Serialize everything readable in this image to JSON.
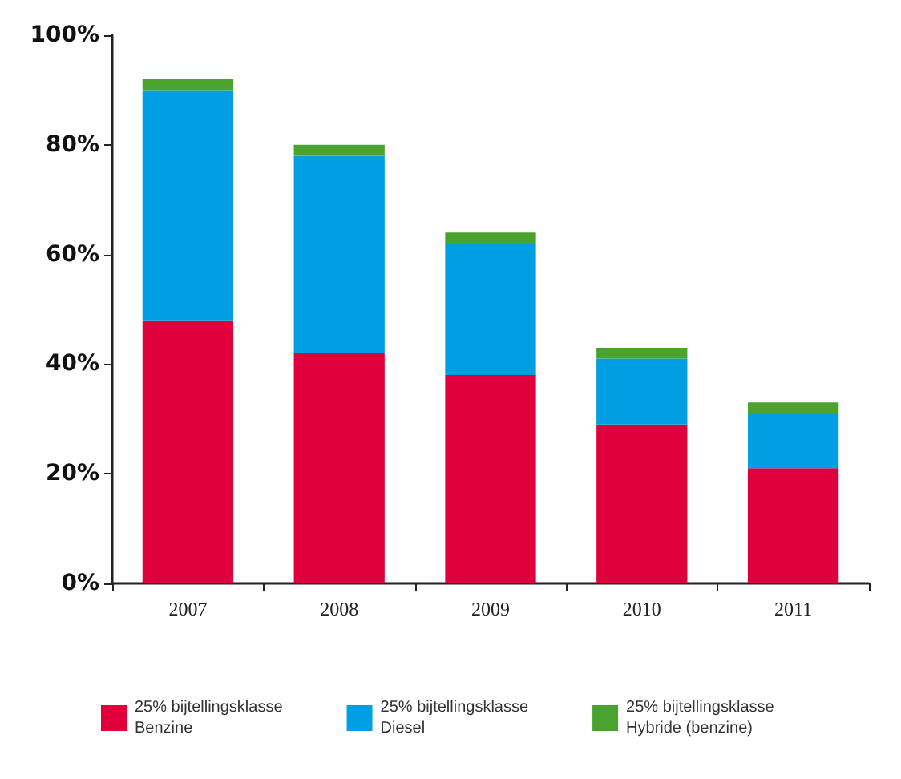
{
  "chart_data": {
    "type": "bar",
    "stacked": true,
    "categories": [
      "2007",
      "2008",
      "2009",
      "2010",
      "2011"
    ],
    "series": [
      {
        "name": "25% bijtellingsklasse\nBenzine",
        "color": "#e0003c",
        "values": [
          48,
          42,
          38,
          29,
          21
        ]
      },
      {
        "name": "25% bijtellingsklasse\nDiesel",
        "color": "#009fe3",
        "values": [
          42,
          36,
          24,
          12,
          10
        ]
      },
      {
        "name": "25% bijtellingsklasse\nHybride (benzine)",
        "color": "#4aa32e",
        "values": [
          2,
          2,
          2,
          2,
          2
        ]
      }
    ],
    "ylim": [
      0,
      100
    ],
    "yticks": [
      {
        "value": 0,
        "label": "0%"
      },
      {
        "value": 20,
        "label": "20%"
      },
      {
        "value": 40,
        "label": "40%"
      },
      {
        "value": 60,
        "label": "60%"
      },
      {
        "value": 80,
        "label": "80%"
      },
      {
        "value": 100,
        "label": "100%"
      }
    ],
    "grid": false,
    "legend": "bottom"
  }
}
